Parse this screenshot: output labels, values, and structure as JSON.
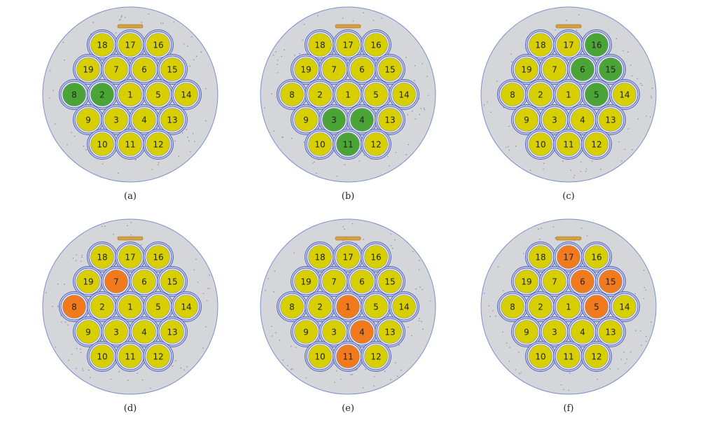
{
  "pin_layout": [
    [
      "18",
      "17",
      "16"
    ],
    [
      "19",
      "7",
      "6",
      "15"
    ],
    [
      "8",
      "2",
      "1",
      "5",
      "14"
    ],
    [
      "9",
      "3",
      "4",
      "13"
    ],
    [
      "10",
      "11",
      "12"
    ]
  ],
  "colors": {
    "pin_default": "#d8cf00",
    "green": "#4aa536",
    "orange": "#f07a1c",
    "background_disk": "#d5d6da",
    "ring": "#5566bb",
    "slot": "#d4a040"
  },
  "panels": [
    {
      "label": "(a)",
      "highlight": [
        "8",
        "2"
      ],
      "highlight_color": "green"
    },
    {
      "label": "(b)",
      "highlight": [
        "3",
        "4",
        "11"
      ],
      "highlight_color": "green"
    },
    {
      "label": "(c)",
      "highlight": [
        "16",
        "6",
        "15",
        "5"
      ],
      "highlight_color": "green"
    },
    {
      "label": "(d)",
      "highlight": [
        "7",
        "8"
      ],
      "highlight_color": "orange"
    },
    {
      "label": "(e)",
      "highlight": [
        "1",
        "4",
        "11"
      ],
      "highlight_color": "orange"
    },
    {
      "label": "(f)",
      "highlight": [
        "17",
        "6",
        "15",
        "5"
      ],
      "highlight_color": "orange"
    }
  ]
}
